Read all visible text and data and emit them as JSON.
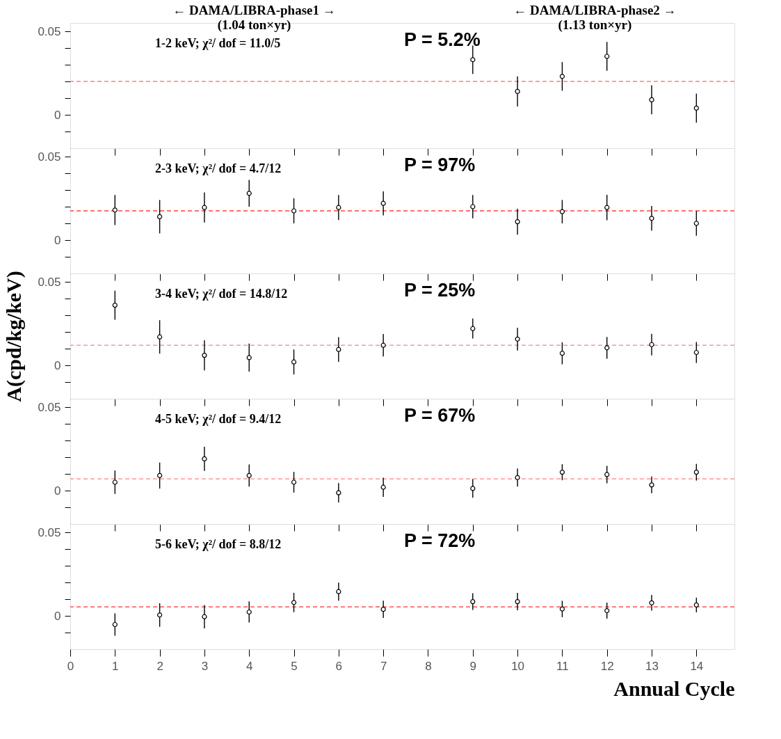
{
  "chart_data": [
    {
      "type": "scatter",
      "color": "#000000",
      "marker": "circle",
      "grid": false,
      "tick_labels": "y",
      "x": [
        9,
        10,
        11,
        12,
        13,
        14
      ],
      "values": [
        0.033,
        0.014,
        0.023,
        0.035,
        0.009,
        0.004
      ],
      "errors": [
        0.0085,
        0.009,
        0.0086,
        0.0086,
        0.0087,
        0.0087
      ],
      "xlim": [
        0,
        14.85
      ],
      "xticks": [
        0,
        1,
        2,
        3,
        4,
        5,
        6,
        7,
        8,
        9,
        10,
        11,
        12,
        13,
        14
      ],
      "ylim": [
        -0.02,
        0.055
      ],
      "yticks": [
        {
          "value": -0.01,
          "label": null
        },
        0,
        {
          "value": 0.01,
          "label": null
        },
        {
          "value": 0.02,
          "label": null
        },
        {
          "value": 0.03,
          "label": null
        },
        {
          "value": 0.04,
          "label": null
        },
        0.05
      ],
      "ref_lines": [
        {
          "axis": "y",
          "value": 0.02,
          "color": "#ff8080",
          "line_style": "dashed"
        }
      ],
      "annotations": [
        "1-2 keV;   χ²/ dof = 11.0/5",
        "P = 5.2%",
        "←      DAMA/LIBRA-phase1      →\n(1.04 ton×yr)",
        "←      DAMA/LIBRA-phase2      →\n(1.13 ton×yr)"
      ]
    },
    {
      "type": "scatter",
      "color": "#000000",
      "marker": "circle",
      "grid": false,
      "tick_labels": "y",
      "x": [
        1,
        2,
        3,
        4,
        5,
        6,
        7,
        9,
        10,
        11,
        12,
        13,
        14
      ],
      "values": [
        0.018,
        0.014,
        0.0195,
        0.028,
        0.0175,
        0.0195,
        0.022,
        0.02,
        0.011,
        0.017,
        0.0195,
        0.013,
        0.01
      ],
      "errors": [
        0.009,
        0.01,
        0.009,
        0.008,
        0.0075,
        0.0075,
        0.0072,
        0.007,
        0.0078,
        0.007,
        0.0076,
        0.0074,
        0.0074
      ],
      "xlim": [
        0,
        14.85
      ],
      "xticks": [
        0,
        1,
        2,
        3,
        4,
        5,
        6,
        7,
        8,
        9,
        10,
        11,
        12,
        13,
        14
      ],
      "ylim": [
        -0.02,
        0.055
      ],
      "yticks": [
        {
          "value": -0.01,
          "label": null
        },
        0,
        {
          "value": 0.01,
          "label": null
        },
        {
          "value": 0.02,
          "label": null
        },
        {
          "value": 0.03,
          "label": null
        },
        {
          "value": 0.04,
          "label": null
        },
        0.05
      ],
      "ref_lines": [
        {
          "axis": "y",
          "value": 0.0175,
          "color": "#ff4040",
          "line_style": "dashed"
        }
      ],
      "annotations": [
        "2-3 keV;   χ²/ dof = 4.7/12",
        "P = 97%"
      ]
    },
    {
      "type": "scatter",
      "color": "#000000",
      "marker": "circle",
      "grid": false,
      "tick_labels": "y",
      "ylabel": "A(cpd/kg/keV)",
      "x": [
        1,
        2,
        3,
        4,
        5,
        6,
        7,
        9,
        10,
        11,
        12,
        13,
        14
      ],
      "values": [
        0.036,
        0.017,
        0.006,
        0.0046,
        0.002,
        0.0095,
        0.012,
        0.022,
        0.0157,
        0.0072,
        0.0105,
        0.0124,
        0.0077
      ],
      "errors": [
        0.0087,
        0.01,
        0.009,
        0.0084,
        0.0075,
        0.0074,
        0.0067,
        0.006,
        0.0068,
        0.0066,
        0.0065,
        0.0065,
        0.0063
      ],
      "xlim": [
        0,
        14.85
      ],
      "xticks": [
        0,
        1,
        2,
        3,
        4,
        5,
        6,
        7,
        8,
        9,
        10,
        11,
        12,
        13,
        14
      ],
      "ylim": [
        -0.02,
        0.055
      ],
      "yticks": [
        {
          "value": -0.01,
          "label": null
        },
        0,
        {
          "value": 0.01,
          "label": null
        },
        {
          "value": 0.02,
          "label": null
        },
        {
          "value": 0.03,
          "label": null
        },
        {
          "value": 0.04,
          "label": null
        },
        0.05
      ],
      "ref_lines": [
        {
          "axis": "y",
          "value": 0.012,
          "color": "#ff8080",
          "line_style": "dashed"
        }
      ],
      "annotations": [
        "3-4 keV;   χ²/ dof = 14.8/12",
        "P = 25%"
      ]
    },
    {
      "type": "scatter",
      "color": "#000000",
      "marker": "circle",
      "grid": false,
      "tick_labels": "y",
      "x": [
        1,
        2,
        3,
        4,
        5,
        6,
        7,
        9,
        10,
        11,
        12,
        13,
        14
      ],
      "values": [
        0.005,
        0.009,
        0.019,
        0.009,
        0.005,
        -0.0013,
        0.002,
        0.0013,
        0.0078,
        0.011,
        0.0096,
        0.0034,
        0.011
      ],
      "errors": [
        0.007,
        0.0078,
        0.0072,
        0.0066,
        0.0062,
        0.0058,
        0.0057,
        0.0056,
        0.0054,
        0.0048,
        0.0052,
        0.005,
        0.005
      ],
      "xlim": [
        0,
        14.85
      ],
      "xticks": [
        0,
        1,
        2,
        3,
        4,
        5,
        6,
        7,
        8,
        9,
        10,
        11,
        12,
        13,
        14
      ],
      "ylim": [
        -0.02,
        0.055
      ],
      "yticks": [
        {
          "value": -0.01,
          "label": null
        },
        0,
        {
          "value": 0.01,
          "label": null
        },
        {
          "value": 0.02,
          "label": null
        },
        {
          "value": 0.03,
          "label": null
        },
        {
          "value": 0.04,
          "label": null
        },
        0.05
      ],
      "ref_lines": [
        {
          "axis": "y",
          "value": 0.007,
          "color": "#ff8080",
          "line_style": "dashed"
        }
      ],
      "annotations": [
        "4-5 keV;   χ²/ dof = 9.4/12",
        "P = 67%"
      ]
    },
    {
      "type": "scatter",
      "color": "#000000",
      "marker": "circle",
      "grid": false,
      "xlabel": "Annual Cycle",
      "x": [
        1,
        2,
        3,
        4,
        5,
        6,
        7,
        9,
        10,
        11,
        12,
        13,
        14
      ],
      "values": [
        -0.0052,
        0.0005,
        -0.0005,
        0.0023,
        0.008,
        0.0145,
        0.0039,
        0.0085,
        0.0085,
        0.0041,
        0.0031,
        0.0078,
        0.0065
      ],
      "errors": [
        0.0067,
        0.0071,
        0.007,
        0.0063,
        0.0058,
        0.0054,
        0.0052,
        0.005,
        0.0052,
        0.0049,
        0.0048,
        0.0047,
        0.0044
      ],
      "xlim": [
        0,
        14.85
      ],
      "xticks": [
        0,
        1,
        2,
        3,
        4,
        5,
        6,
        7,
        8,
        9,
        10,
        11,
        12,
        13,
        14
      ],
      "ylim": [
        -0.02,
        0.055
      ],
      "yticks": [
        {
          "value": -0.01,
          "label": null
        },
        0,
        {
          "value": 0.01,
          "label": null
        },
        {
          "value": 0.02,
          "label": null
        },
        {
          "value": 0.03,
          "label": null
        },
        {
          "value": 0.04,
          "label": null
        },
        0.05
      ],
      "ref_lines": [
        {
          "axis": "y",
          "value": 0.0054,
          "color": "#ff3030",
          "line_style": "dashed"
        }
      ],
      "annotations": [
        "5-6 keV;   χ²/ dof = 8.8/12",
        "P = 72%"
      ]
    }
  ]
}
